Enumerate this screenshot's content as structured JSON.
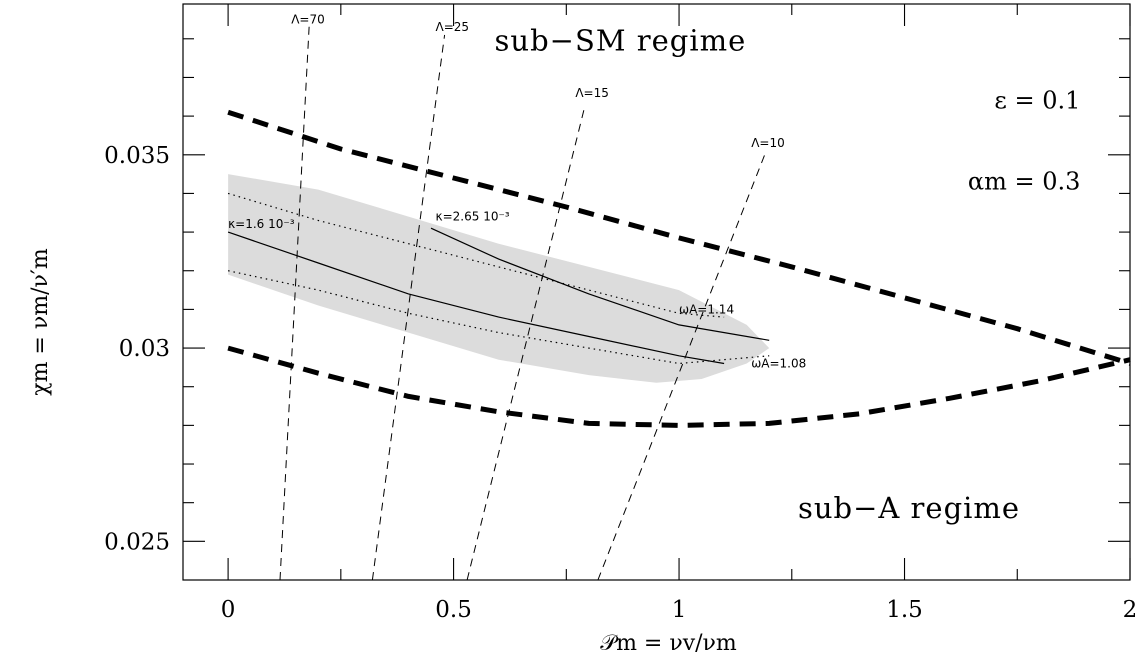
{
  "chart_data": {
    "type": "line",
    "xlabel": "𝒫m = νv/νm",
    "ylabel": "χm = νm/ν′m",
    "xlim": [
      -0.1,
      2.0
    ],
    "ylim": [
      0.024,
      0.0389
    ],
    "xticks": [
      {
        "value": 0,
        "label": "0"
      },
      {
        "value": 0.5,
        "label": "0.5"
      },
      {
        "value": 1,
        "label": "1"
      },
      {
        "value": 1.5,
        "label": "1.5"
      },
      {
        "value": 2,
        "label": "2"
      }
    ],
    "yticks": [
      {
        "value": 0.025,
        "label": "0.025"
      },
      {
        "value": 0.03,
        "label": "0.03"
      },
      {
        "value": 0.035,
        "label": "0.035"
      }
    ],
    "shaded_region": {
      "color": "#dcdcdc",
      "points": [
        [
          0.0,
          0.0345
        ],
        [
          0.2,
          0.0341
        ],
        [
          0.4,
          0.0334
        ],
        [
          0.6,
          0.0327
        ],
        [
          0.8,
          0.0321
        ],
        [
          1.0,
          0.0315
        ],
        [
          1.15,
          0.0306
        ],
        [
          1.2,
          0.03
        ],
        [
          1.15,
          0.0296
        ],
        [
          1.05,
          0.0292
        ],
        [
          0.95,
          0.0291
        ],
        [
          0.8,
          0.0293
        ],
        [
          0.6,
          0.0297
        ],
        [
          0.4,
          0.0304
        ],
        [
          0.2,
          0.0311
        ],
        [
          0.0,
          0.0319
        ]
      ]
    },
    "series": [
      {
        "style": "thick-dashed",
        "points": [
          [
            0,
            0.0361
          ],
          [
            0.25,
            0.03515
          ],
          [
            0.5,
            0.0344
          ],
          [
            0.75,
            0.03365
          ],
          [
            1.0,
            0.03285
          ],
          [
            1.25,
            0.0321
          ],
          [
            1.5,
            0.0313
          ],
          [
            1.75,
            0.0305
          ],
          [
            2.0,
            0.0296
          ]
        ]
      },
      {
        "style": "thick-dashed",
        "points": [
          [
            0,
            0.03
          ],
          [
            0.2,
            0.02935
          ],
          [
            0.4,
            0.02875
          ],
          [
            0.6,
            0.02835
          ],
          [
            0.8,
            0.02805
          ],
          [
            1.0,
            0.028
          ],
          [
            1.2,
            0.02805
          ],
          [
            1.4,
            0.0283
          ],
          [
            1.6,
            0.0287
          ],
          [
            1.8,
            0.02915
          ],
          [
            2.0,
            0.0297
          ]
        ]
      },
      {
        "style": "solid",
        "points": [
          [
            0,
            0.033
          ],
          [
            0.2,
            0.0322
          ],
          [
            0.4,
            0.0314
          ],
          [
            0.6,
            0.0308
          ],
          [
            0.8,
            0.0303
          ],
          [
            1.0,
            0.0298
          ],
          [
            1.1,
            0.0296
          ]
        ]
      },
      {
        "style": "solid",
        "points": [
          [
            0.45,
            0.0331
          ],
          [
            0.6,
            0.0323
          ],
          [
            0.8,
            0.0314
          ],
          [
            1.0,
            0.0306
          ],
          [
            1.2,
            0.0302
          ]
        ]
      },
      {
        "style": "dotted",
        "points": [
          [
            0,
            0.034
          ],
          [
            0.2,
            0.0333
          ],
          [
            0.4,
            0.0327
          ],
          [
            0.6,
            0.0321
          ],
          [
            0.8,
            0.0315
          ],
          [
            1.0,
            0.0309
          ],
          [
            1.1,
            0.0308
          ]
        ]
      },
      {
        "style": "dotted",
        "points": [
          [
            0,
            0.032
          ],
          [
            0.2,
            0.0315
          ],
          [
            0.4,
            0.0309
          ],
          [
            0.6,
            0.0304
          ],
          [
            0.8,
            0.03
          ],
          [
            1.0,
            0.0296
          ],
          [
            1.2,
            0.0298
          ]
        ]
      },
      {
        "style": "thin-dashed",
        "points": [
          [
            0.115,
            0.024
          ],
          [
            0.18,
            0.0384
          ]
        ]
      },
      {
        "style": "thin-dashed",
        "points": [
          [
            0.32,
            0.024
          ],
          [
            0.48,
            0.0381
          ]
        ]
      },
      {
        "style": "thin-dashed",
        "points": [
          [
            0.53,
            0.024
          ],
          [
            0.79,
            0.0362
          ]
        ]
      },
      {
        "style": "thin-dashed",
        "points": [
          [
            0.82,
            0.024
          ],
          [
            1.19,
            0.035
          ]
        ]
      }
    ],
    "annotations": [
      {
        "text": "sub−SM regime",
        "x": 0.87,
        "y": 0.0377,
        "kind": "region"
      },
      {
        "text": "sub−A regime",
        "x": 1.51,
        "y": 0.0256,
        "kind": "region"
      },
      {
        "text": "ε  =  0.1",
        "x": 1.89,
        "y": 0.0362,
        "kind": "param"
      },
      {
        "text": "αm  =  0.3",
        "x": 1.89,
        "y": 0.0341,
        "kind": "param"
      },
      {
        "text": "Λ=70",
        "x": 0.14,
        "y": 0.0384,
        "kind": "small"
      },
      {
        "text": "Λ=25",
        "x": 0.46,
        "y": 0.0382,
        "kind": "small"
      },
      {
        "text": "Λ=15",
        "x": 0.77,
        "y": 0.0365,
        "kind": "small"
      },
      {
        "text": "Λ=10",
        "x": 1.16,
        "y": 0.0352,
        "kind": "small"
      },
      {
        "text": "κ=1.6  10⁻³",
        "x": 0.0,
        "y": 0.0331,
        "kind": "small"
      },
      {
        "text": "κ=2.65  10⁻³",
        "x": 0.46,
        "y": 0.0333,
        "kind": "small"
      },
      {
        "text": "ωA=1.14",
        "x": 1.0,
        "y": 0.0309,
        "kind": "small"
      },
      {
        "text": "ωA=1.08",
        "x": 1.16,
        "y": 0.0295,
        "kind": "small"
      }
    ]
  }
}
